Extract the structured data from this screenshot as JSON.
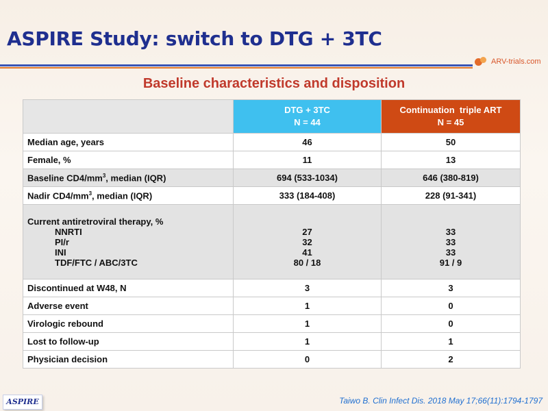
{
  "title": "ASPIRE Study: switch to DTG + 3TC",
  "logo_text": "ARV-trials.com",
  "subtitle": "Baseline characteristics and disposition",
  "table": {
    "headers": {
      "dtg": {
        "line1": "DTG + 3TC",
        "line2": "N = 44"
      },
      "cont": {
        "line1": "Continuation  triple ART",
        "line2": "N = 45"
      }
    },
    "rows": {
      "age": {
        "label": "Median age, years",
        "dtg": "46",
        "cont": "50"
      },
      "female": {
        "label": "Female, %",
        "dtg": "11",
        "cont": "13"
      },
      "cd4": {
        "label_pre": "Baseline CD4/mm",
        "label_sup": "3",
        "label_post": ", median (IQR)",
        "dtg": "694 (533-1034)",
        "cont": "646 (380-819)"
      },
      "nadir": {
        "label_pre": "Nadir CD4/mm",
        "label_sup": "3",
        "label_post": ", median (IQR)",
        "dtg": "333 (184-408)",
        "cont": "228 (91-341)"
      },
      "art": {
        "label": "Current antiretroviral therapy, %",
        "sub": [
          "NNRTI",
          "PI/r",
          "INI",
          "TDF/FTC / ABC/3TC"
        ],
        "dtg": [
          "27",
          "32",
          "41",
          "80 / 18"
        ],
        "cont": [
          "33",
          "33",
          "33",
          "91 / 9"
        ]
      },
      "disc": {
        "label": "Discontinued at W48, N",
        "dtg": "3",
        "cont": "3"
      },
      "ae": {
        "label": "Adverse event",
        "dtg": "1",
        "cont": "0"
      },
      "viro": {
        "label": "Virologic rebound",
        "dtg": "1",
        "cont": "0"
      },
      "lost": {
        "label": "Lost to follow-up",
        "dtg": "1",
        "cont": "1"
      },
      "phys": {
        "label": "Physician decision",
        "dtg": "0",
        "cont": "2"
      }
    }
  },
  "footer": {
    "badge": "ASPIRE",
    "citation": "Taiwo B. Clin Infect Dis. 2018 May 17;66(11):1794-1797"
  },
  "colors": {
    "title": "#1f2f8f",
    "subtitle": "#c0392b",
    "dtg_header": "#3fc0ef",
    "cont_header": "#cf4a14",
    "citation": "#1f6fd0"
  }
}
